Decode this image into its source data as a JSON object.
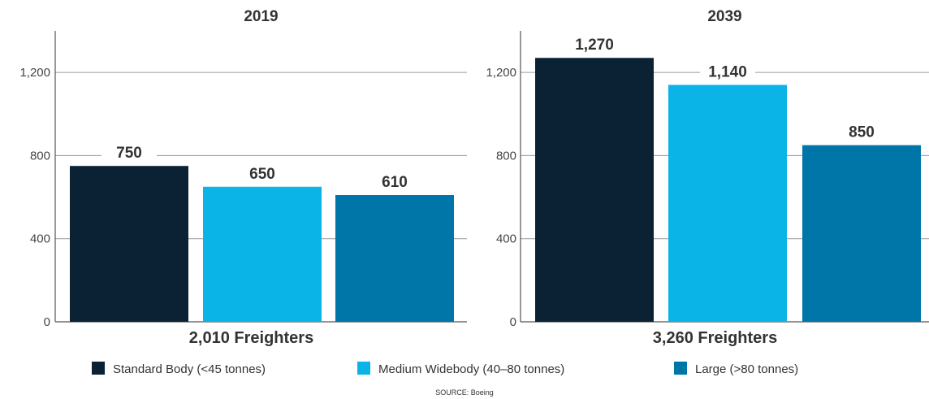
{
  "chart_data": [
    {
      "type": "bar",
      "title": "2019",
      "categories": [
        "Standard Body (<45 tonnes)",
        "Medium Widebody (40–80 tonnes)",
        "Large (>80 tonnes)"
      ],
      "values": [
        750,
        650,
        610
      ],
      "value_labels": [
        "750",
        "650",
        "610"
      ],
      "yticks": [
        "0",
        "400",
        "800",
        "1,200"
      ],
      "ylim": [
        0,
        1400
      ],
      "total_label": "2,010 Freighters",
      "grid": true
    },
    {
      "type": "bar",
      "title": "2039",
      "categories": [
        "Standard Body (<45 tonnes)",
        "Medium Widebody (40–80 tonnes)",
        "Large (>80 tonnes)"
      ],
      "values": [
        1270,
        1140,
        850
      ],
      "value_labels": [
        "1,270",
        "1,140",
        "850"
      ],
      "yticks": [
        "0",
        "400",
        "800",
        "1,200"
      ],
      "ylim": [
        0,
        1400
      ],
      "total_label": "3,260 Freighters",
      "grid": true
    }
  ],
  "legend": {
    "placement": "bottom",
    "items": [
      {
        "label": "Standard Body (<45 tonnes)",
        "color": "#0b2235"
      },
      {
        "label": "Medium Widebody (40–80 tonnes)",
        "color": "#0ab4e6"
      },
      {
        "label": "Large (>80 tonnes)",
        "color": "#0075a8"
      }
    ]
  },
  "source": "SOURCE: Boeing"
}
